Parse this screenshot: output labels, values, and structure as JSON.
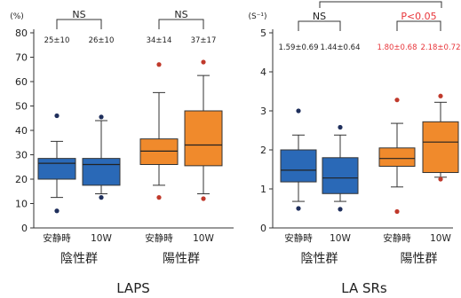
{
  "chart_data": [
    {
      "type": "box",
      "title": "LAPS",
      "ylabel": "(%)",
      "ylim": [
        0,
        80
      ],
      "yticks": [
        0,
        10,
        20,
        30,
        40,
        50,
        60,
        70,
        80
      ],
      "categories": [
        "安静時",
        "10W",
        "安静時",
        "10W"
      ],
      "groups": [
        "陰性群",
        "陽性群"
      ],
      "boxes": [
        {
          "color": "#2a69b7",
          "whisker_low": 12.5,
          "q1": 20,
          "median": 26.5,
          "q3": 28.5,
          "whisker_high": 35.5,
          "outliers": [
            7,
            46
          ]
        },
        {
          "color": "#2a69b7",
          "whisker_low": 14,
          "q1": 17.5,
          "median": 26,
          "q3": 28.5,
          "whisker_high": 44,
          "outliers": [
            12.5,
            45.5
          ]
        },
        {
          "color": "#f08a2c",
          "whisker_low": 17.5,
          "q1": 26,
          "median": 31.5,
          "q3": 36.5,
          "whisker_high": 55.5,
          "outliers": [
            12.5,
            67
          ]
        },
        {
          "color": "#f08a2c",
          "whisker_low": 14,
          "q1": 25.5,
          "median": 34,
          "q3": 48,
          "whisker_high": 62.5,
          "outliers": [
            12,
            68
          ]
        }
      ],
      "stats": [
        "25±10",
        "26±10",
        "34±14",
        "37±17"
      ],
      "annotations": [
        "NS",
        "NS"
      ]
    },
    {
      "type": "box",
      "title": "LA SRs",
      "ylabel": "(S⁻¹)",
      "ylim": [
        0,
        5
      ],
      "yticks": [
        0,
        1,
        2,
        3,
        4,
        5
      ],
      "categories": [
        "安静時",
        "10W",
        "安静時",
        "10W"
      ],
      "groups": [
        "陰性群",
        "陽性群"
      ],
      "boxes": [
        {
          "color": "#2a69b7",
          "whisker_low": 0.68,
          "q1": 1.18,
          "median": 1.48,
          "q3": 2.0,
          "whisker_high": 2.38,
          "outliers": [
            0.5,
            3.0
          ]
        },
        {
          "color": "#2a69b7",
          "whisker_low": 0.68,
          "q1": 0.88,
          "median": 1.28,
          "q3": 1.8,
          "whisker_high": 2.38,
          "outliers": [
            0.48,
            2.58
          ]
        },
        {
          "color": "#f08a2c",
          "whisker_low": 1.05,
          "q1": 1.58,
          "median": 1.78,
          "q3": 2.05,
          "whisker_high": 2.68,
          "outliers": [
            0.42,
            3.28
          ]
        },
        {
          "color": "#f08a2c",
          "whisker_low": 1.3,
          "q1": 1.42,
          "median": 2.2,
          "q3": 2.72,
          "whisker_high": 3.22,
          "outliers": [
            1.25,
            3.38
          ]
        }
      ],
      "stats": [
        "1.59±0.69",
        "1.44±0.64",
        "1.80±0.68",
        "2.18±0.72"
      ],
      "stats_colors": [
        "#222222",
        "#222222",
        "#e8353a",
        "#e8353a"
      ],
      "annotations": [
        "NS",
        "P<0.05"
      ],
      "annotation_colors": [
        "#222222",
        "#e8353a"
      ]
    }
  ]
}
